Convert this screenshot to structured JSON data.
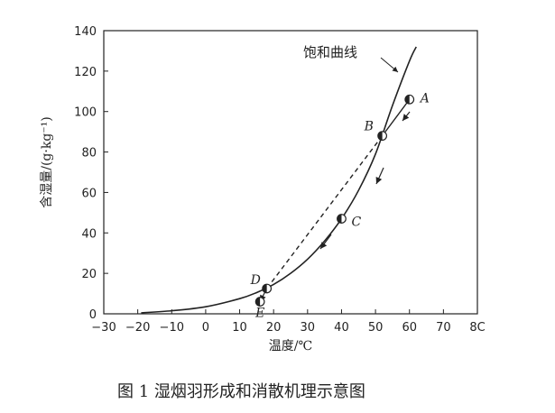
{
  "chart_data": {
    "type": "line",
    "xlabel": "温度/℃",
    "ylabel": "含湿量/(g·kg⁻¹)",
    "xlim": [
      -30,
      80
    ],
    "ylim": [
      0,
      140
    ],
    "x_ticks": [
      "−30",
      "−20",
      "−10",
      "0",
      "10",
      "20",
      "30",
      "40",
      "50",
      "60",
      "70",
      "8C"
    ],
    "y_ticks": [
      "0",
      "20",
      "40",
      "60",
      "80",
      "100",
      "120",
      "140"
    ],
    "curve_label": "饱和曲线",
    "series": [
      {
        "name": "饱和曲线",
        "x": [
          -19,
          -10,
          0,
          10,
          15,
          20,
          25,
          30,
          35,
          40,
          45,
          50,
          55,
          60,
          62
        ],
        "y": [
          0.5,
          1.5,
          3.5,
          7.5,
          10.5,
          14.5,
          20,
          27,
          36,
          47,
          61,
          79,
          103,
          125,
          132
        ]
      }
    ],
    "points": [
      {
        "label": "A",
        "x": 60,
        "y": 106
      },
      {
        "label": "B",
        "x": 52,
        "y": 88
      },
      {
        "label": "C",
        "x": 40,
        "y": 47
      },
      {
        "label": "D",
        "x": 18,
        "y": 12.5
      },
      {
        "label": "E",
        "x": 16,
        "y": 6
      }
    ],
    "dashed_path": [
      "B",
      "D"
    ],
    "solid_path": [
      "A",
      "B"
    ],
    "mixing_path": [
      "D",
      "E"
    ]
  },
  "caption": "图 1   湿烟羽形成和消散机理示意图"
}
